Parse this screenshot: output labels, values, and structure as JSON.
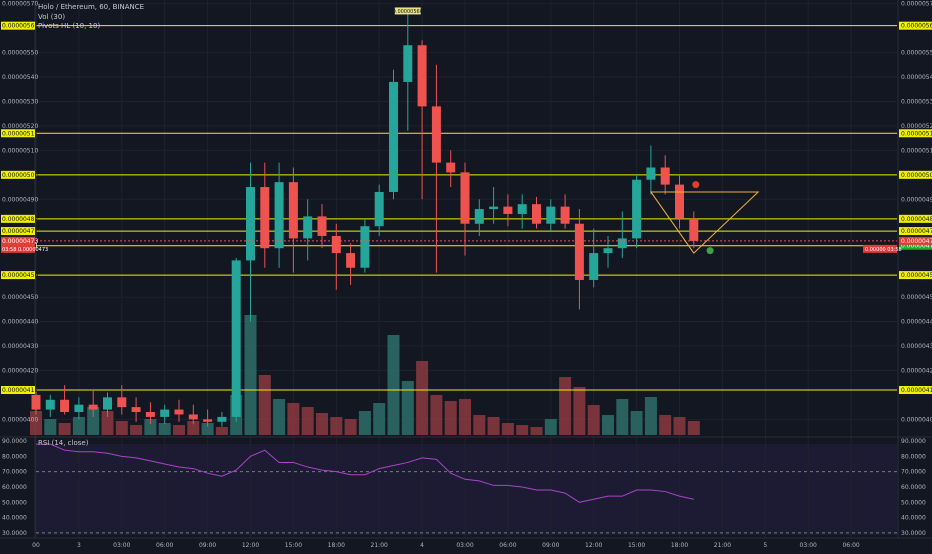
{
  "header": {
    "symbol_line": "Holo / Ethereum, 60, BINANCE",
    "vol_label": "Vol (30)",
    "pivots_label": "Pivots HL (10, 10)"
  },
  "rsi_label": "RSI (14, close)",
  "colors": {
    "up": "#26a69a",
    "down": "#ef5350",
    "level": "#f0f000",
    "triangle": "#f0b040",
    "rsi": "#a845c8",
    "grid": "#1e2230",
    "bg": "#131722"
  },
  "chart_data": {
    "type": "candlestick",
    "title": "Holo / Ethereum, 60, BINANCE",
    "price_ticks_left": [
      "0.00000570",
      "0.00000561",
      "0.00000550",
      "0.00000540",
      "0.00000530",
      "0.00000520",
      "0.00000517",
      "0.00000510",
      "0.00000500",
      "0.00000490",
      "0.00000482",
      "0.00000477",
      "0.00000473",
      "0.00000471",
      "0.00000459",
      "0.00000450",
      "0.00000440",
      "0.00000430",
      "0.00000420",
      "0.00000412",
      "0.00000400"
    ],
    "price_axis": [
      {
        "v": 570,
        "label": "0.00000570"
      },
      {
        "v": 550,
        "label": "0.00000550"
      },
      {
        "v": 540,
        "label": "0.00000540"
      },
      {
        "v": 530,
        "label": "0.00000530"
      },
      {
        "v": 520,
        "label": "0.00000520"
      },
      {
        "v": 510,
        "label": "0.00000510"
      },
      {
        "v": 490,
        "label": "0.00000490"
      },
      {
        "v": 450,
        "label": "0.00000450"
      },
      {
        "v": 440,
        "label": "0.00000440"
      },
      {
        "v": 430,
        "label": "0.00000430"
      },
      {
        "v": 420,
        "label": "0.00000420"
      },
      {
        "v": 400,
        "label": "0.00000400"
      }
    ],
    "levels": [
      {
        "v": 561,
        "label": "0.00000561"
      },
      {
        "v": 517,
        "label": "0.00000517"
      },
      {
        "v": 500,
        "label": "0.00000500"
      },
      {
        "v": 482,
        "label": "0.00000482"
      },
      {
        "v": 477,
        "label": "0.00000477"
      },
      {
        "v": 471,
        "label": "0.00000471"
      },
      {
        "v": 459,
        "label": "0.00000459"
      },
      {
        "v": 412,
        "label": "0.00000412"
      }
    ],
    "current_price": {
      "v": 473,
      "label": "0.00000473",
      "countdown": "03:58"
    },
    "peak_label": {
      "v": 566,
      "label": "0.00000566"
    },
    "x_labels": [
      {
        "i": 0,
        "t": "00"
      },
      {
        "i": 3,
        "t": "3"
      },
      {
        "i": 6,
        "t": "03:00"
      },
      {
        "i": 9,
        "t": "06:00"
      },
      {
        "i": 12,
        "t": "09:00"
      },
      {
        "i": 15,
        "t": "12:00"
      },
      {
        "i": 18,
        "t": "15:00"
      },
      {
        "i": 21,
        "t": "18:00"
      },
      {
        "i": 24,
        "t": "21:00"
      },
      {
        "i": 27,
        "t": "4"
      },
      {
        "i": 30,
        "t": "03:00"
      },
      {
        "i": 33,
        "t": "06:00"
      },
      {
        "i": 36,
        "t": "09:00"
      },
      {
        "i": 39,
        "t": "12:00"
      },
      {
        "i": 42,
        "t": "15:00"
      },
      {
        "i": 45,
        "t": "18:00"
      },
      {
        "i": 48,
        "t": "21:00"
      },
      {
        "i": 51,
        "t": "5"
      },
      {
        "i": 54,
        "t": "03:00"
      },
      {
        "i": 57,
        "t": "06:00"
      }
    ],
    "candles": [
      {
        "i": 0,
        "o": 410,
        "h": 412,
        "l": 402,
        "c": 404
      },
      {
        "i": 1,
        "o": 404,
        "h": 410,
        "l": 401,
        "c": 408
      },
      {
        "i": 2,
        "o": 408,
        "h": 414,
        "l": 402,
        "c": 403
      },
      {
        "i": 3,
        "o": 403,
        "h": 409,
        "l": 400,
        "c": 406
      },
      {
        "i": 4,
        "o": 406,
        "h": 412,
        "l": 401,
        "c": 404
      },
      {
        "i": 5,
        "o": 404,
        "h": 411,
        "l": 401,
        "c": 409
      },
      {
        "i": 6,
        "o": 409,
        "h": 414,
        "l": 402,
        "c": 405
      },
      {
        "i": 7,
        "o": 405,
        "h": 409,
        "l": 399,
        "c": 403
      },
      {
        "i": 8,
        "o": 403,
        "h": 407,
        "l": 398,
        "c": 401
      },
      {
        "i": 9,
        "o": 401,
        "h": 406,
        "l": 398,
        "c": 404
      },
      {
        "i": 10,
        "o": 404,
        "h": 408,
        "l": 399,
        "c": 402
      },
      {
        "i": 11,
        "o": 402,
        "h": 406,
        "l": 398,
        "c": 400
      },
      {
        "i": 12,
        "o": 400,
        "h": 404,
        "l": 397,
        "c": 399
      },
      {
        "i": 13,
        "o": 399,
        "h": 403,
        "l": 397,
        "c": 401
      },
      {
        "i": 14,
        "o": 401,
        "h": 466,
        "l": 399,
        "c": 465
      },
      {
        "i": 15,
        "o": 465,
        "h": 505,
        "l": 440,
        "c": 495
      },
      {
        "i": 16,
        "o": 495,
        "h": 505,
        "l": 462,
        "c": 470
      },
      {
        "i": 17,
        "o": 470,
        "h": 505,
        "l": 462,
        "c": 497
      },
      {
        "i": 18,
        "o": 497,
        "h": 503,
        "l": 460,
        "c": 474
      },
      {
        "i": 19,
        "o": 474,
        "h": 490,
        "l": 465,
        "c": 483
      },
      {
        "i": 20,
        "o": 483,
        "h": 488,
        "l": 470,
        "c": 475
      },
      {
        "i": 21,
        "o": 475,
        "h": 480,
        "l": 453,
        "c": 468
      },
      {
        "i": 22,
        "o": 468,
        "h": 472,
        "l": 455,
        "c": 462
      },
      {
        "i": 23,
        "o": 462,
        "h": 482,
        "l": 460,
        "c": 479
      },
      {
        "i": 24,
        "o": 479,
        "h": 496,
        "l": 475,
        "c": 493
      },
      {
        "i": 25,
        "o": 493,
        "h": 543,
        "l": 490,
        "c": 538
      },
      {
        "i": 26,
        "o": 538,
        "h": 566,
        "l": 518,
        "c": 553
      },
      {
        "i": 27,
        "o": 553,
        "h": 555,
        "l": 490,
        "c": 528
      },
      {
        "i": 28,
        "o": 528,
        "h": 545,
        "l": 460,
        "c": 505
      },
      {
        "i": 29,
        "o": 505,
        "h": 510,
        "l": 495,
        "c": 501
      },
      {
        "i": 30,
        "o": 501,
        "h": 505,
        "l": 467,
        "c": 480
      },
      {
        "i": 31,
        "o": 480,
        "h": 490,
        "l": 475,
        "c": 486
      },
      {
        "i": 32,
        "o": 486,
        "h": 495,
        "l": 480,
        "c": 487
      },
      {
        "i": 33,
        "o": 487,
        "h": 492,
        "l": 479,
        "c": 484
      },
      {
        "i": 34,
        "o": 484,
        "h": 492,
        "l": 478,
        "c": 488
      },
      {
        "i": 35,
        "o": 488,
        "h": 491,
        "l": 478,
        "c": 480
      },
      {
        "i": 36,
        "o": 480,
        "h": 490,
        "l": 477,
        "c": 487
      },
      {
        "i": 37,
        "o": 487,
        "h": 492,
        "l": 478,
        "c": 480
      },
      {
        "i": 38,
        "o": 480,
        "h": 486,
        "l": 445,
        "c": 457
      },
      {
        "i": 39,
        "o": 457,
        "h": 478,
        "l": 454,
        "c": 468
      },
      {
        "i": 40,
        "o": 468,
        "h": 475,
        "l": 462,
        "c": 470
      },
      {
        "i": 41,
        "o": 470,
        "h": 485,
        "l": 466,
        "c": 474
      },
      {
        "i": 42,
        "o": 474,
        "h": 500,
        "l": 470,
        "c": 498
      },
      {
        "i": 43,
        "o": 498,
        "h": 512,
        "l": 492,
        "c": 503
      },
      {
        "i": 44,
        "o": 503,
        "h": 508,
        "l": 492,
        "c": 496
      },
      {
        "i": 45,
        "o": 496,
        "h": 500,
        "l": 478,
        "c": 482
      },
      {
        "i": 46,
        "o": 482,
        "h": 485,
        "l": 470,
        "c": 473
      }
    ],
    "volume": [
      {
        "i": 0,
        "v": 12,
        "up": false
      },
      {
        "i": 1,
        "v": 8,
        "up": true
      },
      {
        "i": 2,
        "v": 6,
        "up": false
      },
      {
        "i": 3,
        "v": 9,
        "up": true
      },
      {
        "i": 4,
        "v": 14,
        "up": true
      },
      {
        "i": 5,
        "v": 12,
        "up": false
      },
      {
        "i": 6,
        "v": 7,
        "up": false
      },
      {
        "i": 7,
        "v": 5,
        "up": false
      },
      {
        "i": 8,
        "v": 8,
        "up": true
      },
      {
        "i": 9,
        "v": 6,
        "up": true
      },
      {
        "i": 10,
        "v": 5,
        "up": false
      },
      {
        "i": 11,
        "v": 7,
        "up": false
      },
      {
        "i": 12,
        "v": 6,
        "up": true
      },
      {
        "i": 13,
        "v": 4,
        "up": false
      },
      {
        "i": 14,
        "v": 20,
        "up": true
      },
      {
        "i": 15,
        "v": 60,
        "up": true
      },
      {
        "i": 16,
        "v": 30,
        "up": false
      },
      {
        "i": 17,
        "v": 18,
        "up": true
      },
      {
        "i": 18,
        "v": 16,
        "up": false
      },
      {
        "i": 19,
        "v": 14,
        "up": false
      },
      {
        "i": 20,
        "v": 11,
        "up": false
      },
      {
        "i": 21,
        "v": 9,
        "up": false
      },
      {
        "i": 22,
        "v": 8,
        "up": false
      },
      {
        "i": 23,
        "v": 12,
        "up": true
      },
      {
        "i": 24,
        "v": 16,
        "up": true
      },
      {
        "i": 25,
        "v": 50,
        "up": true
      },
      {
        "i": 26,
        "v": 27,
        "up": true
      },
      {
        "i": 27,
        "v": 37,
        "up": false
      },
      {
        "i": 28,
        "v": 20,
        "up": false
      },
      {
        "i": 29,
        "v": 17,
        "up": false
      },
      {
        "i": 30,
        "v": 18,
        "up": false
      },
      {
        "i": 31,
        "v": 10,
        "up": false
      },
      {
        "i": 32,
        "v": 9,
        "up": false
      },
      {
        "i": 33,
        "v": 6,
        "up": false
      },
      {
        "i": 34,
        "v": 5,
        "up": false
      },
      {
        "i": 35,
        "v": 4,
        "up": false
      },
      {
        "i": 36,
        "v": 8,
        "up": true
      },
      {
        "i": 37,
        "v": 29,
        "up": false
      },
      {
        "i": 38,
        "v": 24,
        "up": false
      },
      {
        "i": 39,
        "v": 15,
        "up": false
      },
      {
        "i": 40,
        "v": 10,
        "up": true
      },
      {
        "i": 41,
        "v": 18,
        "up": true
      },
      {
        "i": 42,
        "v": 12,
        "up": true
      },
      {
        "i": 43,
        "v": 19,
        "up": true
      },
      {
        "i": 44,
        "v": 10,
        "up": false
      },
      {
        "i": 45,
        "v": 9,
        "up": false
      },
      {
        "i": 46,
        "v": 7,
        "up": false
      }
    ],
    "rsi": {
      "ticks": [
        "90.0000",
        "80.0000",
        "70.0000",
        "60.0000",
        "50.0000",
        "40.0000",
        "30.0000"
      ],
      "tick_values": [
        90,
        80,
        70,
        60,
        50,
        40,
        30
      ],
      "upper": 70,
      "lower": 30,
      "values": [
        88,
        88,
        84,
        83,
        83,
        82,
        80,
        79,
        77,
        75,
        73,
        72,
        69,
        67,
        71,
        80,
        84,
        76,
        76,
        73,
        71,
        70,
        68,
        68,
        72,
        74,
        76,
        79,
        78,
        69,
        65,
        64,
        61,
        61,
        60,
        58,
        58,
        56,
        50,
        52,
        54,
        54,
        58,
        58,
        57,
        54,
        52
      ]
    },
    "triangle": {
      "p1": {
        "i": 43,
        "v": 493
      },
      "p2": {
        "i": 50.5,
        "v": 493
      },
      "p3": {
        "i": 46,
        "v": 468
      }
    },
    "markers": [
      {
        "i": 46,
        "v": 496,
        "kind": "sell"
      },
      {
        "i": 47,
        "v": 469,
        "kind": "buy"
      }
    ]
  }
}
